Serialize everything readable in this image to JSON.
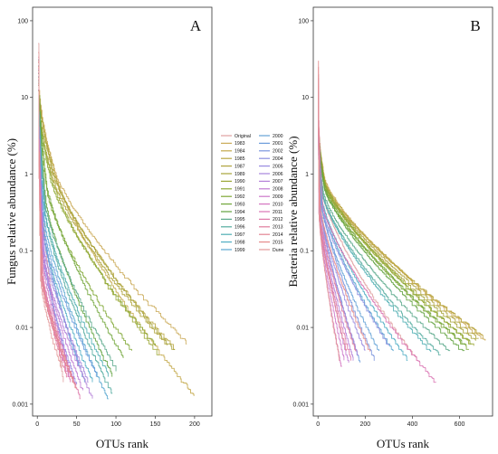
{
  "colors": {
    "Original": "#e0a0a0",
    "1983": "#cbab59",
    "1984": "#c3a84a",
    "1985": "#b9a641",
    "1987": "#afa33c",
    "1989": "#a6a338",
    "1990": "#9ba735",
    "1991": "#8da833",
    "1992": "#7fa734",
    "1993": "#70a538",
    "1994": "#61a23e",
    "1995": "#5aa88b",
    "1996": "#53ab9f",
    "1997": "#4eaeb3",
    "1998": "#50aec4",
    "1999": "#5aa7d0",
    "2000": "#64a2d6",
    "2001": "#6b9cdb",
    "2002": "#7a95de",
    "2004": "#8a8fe0",
    "2005": "#9889e0",
    "2006": "#a685dd",
    "2007": "#b47fd8",
    "2008": "#c07ad2",
    "2009": "#cb77ca",
    "2010": "#d474c0",
    "2011": "#da75b4",
    "2012": "#de78a8",
    "2013": "#e07c9c",
    "2014": "#e38392",
    "2015": "#e58a8a",
    "Dune": "#e39a9a"
  },
  "legend": {
    "col1": [
      "Original",
      "1983",
      "1984",
      "1985",
      "1987",
      "1989",
      "1990",
      "1991",
      "1992",
      "1993",
      "1994",
      "1995",
      "1996",
      "1997",
      "1998",
      "1999"
    ],
    "col2": [
      "2000",
      "2001",
      "2002",
      "2004",
      "2005",
      "2006",
      "2007",
      "2008",
      "2009",
      "2010",
      "2011",
      "2012",
      "2013",
      "2014",
      "2015",
      "Dune"
    ]
  },
  "chart_data": [
    {
      "type": "line",
      "panel": "A",
      "ylabel": "Fungus relative abundance (%)",
      "xlabel": "OTUs rank",
      "y_scale": "log",
      "ylim": [
        0.0007,
        150
      ],
      "xlim": [
        -6,
        222
      ],
      "y_ticks": [
        100,
        10,
        1,
        0.1,
        0.01,
        0.001
      ],
      "y_tick_labels": [
        "100",
        "10",
        "1",
        "0.1",
        "0.01",
        "0.001"
      ],
      "x_ticks": [
        0,
        50,
        100,
        150,
        200
      ],
      "x_tick_labels": [
        "0",
        "50",
        "100",
        "150",
        "200"
      ],
      "grid": false,
      "legend_position": "right",
      "series": [
        {
          "name": "Original",
          "n": 33,
          "start": 50,
          "knee": 1.2,
          "kneeFrac": 0.06,
          "end": 0.002
        },
        {
          "name": "1983",
          "n": 190,
          "start": 22,
          "knee": 1.4,
          "kneeFrac": 0.1,
          "end": 0.0065
        },
        {
          "name": "1984",
          "n": 200,
          "start": 15,
          "knee": 1.3,
          "kneeFrac": 0.1,
          "end": 0.0013
        },
        {
          "name": "1985",
          "n": 175,
          "start": 20,
          "knee": 1.2,
          "kneeFrac": 0.1,
          "end": 0.0055
        },
        {
          "name": "1987",
          "n": 165,
          "start": 12,
          "knee": 1.1,
          "kneeFrac": 0.1,
          "end": 0.006
        },
        {
          "name": "1989",
          "n": 175,
          "start": 18,
          "knee": 1.3,
          "kneeFrac": 0.1,
          "end": 0.005
        },
        {
          "name": "1990",
          "n": 155,
          "start": 14,
          "knee": 1.1,
          "kneeFrac": 0.1,
          "end": 0.0045
        },
        {
          "name": "1991",
          "n": 150,
          "start": 16,
          "knee": 1.0,
          "kneeFrac": 0.1,
          "end": 0.006
        },
        {
          "name": "1992",
          "n": 120,
          "start": 25,
          "knee": 0.6,
          "kneeFrac": 0.1,
          "end": 0.005
        },
        {
          "name": "1993",
          "n": 110,
          "start": 30,
          "knee": 0.8,
          "kneeFrac": 0.1,
          "end": 0.004
        },
        {
          "name": "1994",
          "n": 95,
          "start": 28,
          "knee": 0.5,
          "kneeFrac": 0.1,
          "end": 0.0025
        },
        {
          "name": "1995",
          "n": 100,
          "start": 20,
          "knee": 0.4,
          "kneeFrac": 0.1,
          "end": 0.003
        },
        {
          "name": "1996",
          "n": 95,
          "start": 18,
          "knee": 0.3,
          "kneeFrac": 0.1,
          "end": 0.0014
        },
        {
          "name": "1997",
          "n": 90,
          "start": 22,
          "knee": 0.35,
          "kneeFrac": 0.1,
          "end": 0.0025
        },
        {
          "name": "1998",
          "n": 70,
          "start": 15,
          "knee": 0.2,
          "kneeFrac": 0.1,
          "end": 0.002
        },
        {
          "name": "1999",
          "n": 90,
          "start": 12,
          "knee": 0.25,
          "kneeFrac": 0.1,
          "end": 0.0012
        },
        {
          "name": "2000",
          "n": 60,
          "start": 20,
          "knee": 0.2,
          "kneeFrac": 0.12,
          "end": 0.002
        },
        {
          "name": "2001",
          "n": 75,
          "start": 16,
          "knee": 0.18,
          "kneeFrac": 0.12,
          "end": 0.0025
        },
        {
          "name": "2002",
          "n": 55,
          "start": 25,
          "knee": 0.2,
          "kneeFrac": 0.12,
          "end": 0.003
        },
        {
          "name": "2004",
          "n": 45,
          "start": 30,
          "knee": 0.15,
          "kneeFrac": 0.12,
          "end": 0.002
        },
        {
          "name": "2005",
          "n": 50,
          "start": 18,
          "knee": 0.1,
          "kneeFrac": 0.12,
          "end": 0.0018
        },
        {
          "name": "2006",
          "n": 65,
          "start": 14,
          "knee": 0.12,
          "kneeFrac": 0.12,
          "end": 0.002
        },
        {
          "name": "2007",
          "n": 70,
          "start": 12,
          "knee": 0.09,
          "kneeFrac": 0.12,
          "end": 0.0012
        },
        {
          "name": "2008",
          "n": 58,
          "start": 22,
          "knee": 0.1,
          "kneeFrac": 0.12,
          "end": 0.0015
        },
        {
          "name": "2009",
          "n": 48,
          "start": 20,
          "knee": 0.08,
          "kneeFrac": 0.12,
          "end": 0.0018
        },
        {
          "name": "2010",
          "n": 40,
          "start": 28,
          "knee": 0.06,
          "kneeFrac": 0.12,
          "end": 0.0025
        },
        {
          "name": "2011",
          "n": 42,
          "start": 25,
          "knee": 0.05,
          "kneeFrac": 0.12,
          "end": 0.002
        },
        {
          "name": "2012",
          "n": 55,
          "start": 18,
          "knee": 0.05,
          "kneeFrac": 0.12,
          "end": 0.0012
        },
        {
          "name": "2013",
          "n": 38,
          "start": 35,
          "knee": 0.05,
          "kneeFrac": 0.12,
          "end": 0.0022
        },
        {
          "name": "2014",
          "n": 45,
          "start": 30,
          "knee": 0.04,
          "kneeFrac": 0.12,
          "end": 0.002
        },
        {
          "name": "2015",
          "n": 50,
          "start": 26,
          "knee": 0.045,
          "kneeFrac": 0.12,
          "end": 0.0016
        },
        {
          "name": "Dune",
          "n": 30,
          "start": 40,
          "knee": 0.04,
          "kneeFrac": 0.12,
          "end": 0.003
        }
      ]
    },
    {
      "type": "line",
      "panel": "B",
      "ylabel": "Bacteria relative abundance (%)",
      "xlabel": "OTUs rank",
      "y_scale": "log",
      "ylim": [
        0.0007,
        150
      ],
      "xlim": [
        -20,
        740
      ],
      "y_ticks": [
        100,
        10,
        1,
        0.1,
        0.01,
        0.001
      ],
      "y_tick_labels": [
        "100",
        "10",
        "1",
        "0.1",
        "0.01",
        "0.001"
      ],
      "x_ticks": [
        0,
        200,
        400,
        600
      ],
      "x_tick_labels": [
        "0",
        "200",
        "400",
        "600"
      ],
      "grid": false,
      "series": [
        {
          "name": "Original",
          "n": 420,
          "start": 5,
          "knee": 0.6,
          "kneeFrac": 0.04,
          "end": 0.004
        },
        {
          "name": "1983",
          "n": 710,
          "start": 6,
          "knee": 0.9,
          "kneeFrac": 0.04,
          "end": 0.007
        },
        {
          "name": "1984",
          "n": 700,
          "start": 5,
          "knee": 0.8,
          "kneeFrac": 0.04,
          "end": 0.008
        },
        {
          "name": "1985",
          "n": 690,
          "start": 4.5,
          "knee": 0.85,
          "kneeFrac": 0.04,
          "end": 0.0085
        },
        {
          "name": "1987",
          "n": 680,
          "start": 5,
          "knee": 0.8,
          "kneeFrac": 0.04,
          "end": 0.0075
        },
        {
          "name": "1989",
          "n": 670,
          "start": 4,
          "knee": 0.75,
          "kneeFrac": 0.04,
          "end": 0.007
        },
        {
          "name": "1990",
          "n": 660,
          "start": 4.5,
          "knee": 0.8,
          "kneeFrac": 0.04,
          "end": 0.006
        },
        {
          "name": "1991",
          "n": 650,
          "start": 5,
          "knee": 0.85,
          "kneeFrac": 0.04,
          "end": 0.0065
        },
        {
          "name": "1992",
          "n": 640,
          "start": 4,
          "knee": 0.7,
          "kneeFrac": 0.04,
          "end": 0.0055
        },
        {
          "name": "1993",
          "n": 630,
          "start": 6,
          "knee": 0.75,
          "kneeFrac": 0.04,
          "end": 0.006
        },
        {
          "name": "1994",
          "n": 620,
          "start": 5,
          "knee": 0.7,
          "kneeFrac": 0.04,
          "end": 0.005
        },
        {
          "name": "1995",
          "n": 560,
          "start": 4,
          "knee": 0.6,
          "kneeFrac": 0.04,
          "end": 0.005
        },
        {
          "name": "1996",
          "n": 520,
          "start": 5,
          "knee": 0.55,
          "kneeFrac": 0.04,
          "end": 0.0045
        },
        {
          "name": "1997",
          "n": 480,
          "start": 4,
          "knee": 0.55,
          "kneeFrac": 0.04,
          "end": 0.005
        },
        {
          "name": "1998",
          "n": 380,
          "start": 5,
          "knee": 0.5,
          "kneeFrac": 0.04,
          "end": 0.004
        },
        {
          "name": "1999",
          "n": 320,
          "start": 4,
          "knee": 0.5,
          "kneeFrac": 0.04,
          "end": 0.005
        },
        {
          "name": "2000",
          "n": 260,
          "start": 6,
          "knee": 0.45,
          "kneeFrac": 0.04,
          "end": 0.005
        },
        {
          "name": "2001",
          "n": 180,
          "start": 5,
          "knee": 0.45,
          "kneeFrac": 0.04,
          "end": 0.0035
        },
        {
          "name": "2002",
          "n": 240,
          "start": 6,
          "knee": 0.5,
          "kneeFrac": 0.04,
          "end": 0.004
        },
        {
          "name": "2004",
          "n": 300,
          "start": 5,
          "knee": 0.45,
          "kneeFrac": 0.04,
          "end": 0.006
        },
        {
          "name": "2005",
          "n": 200,
          "start": 8,
          "knee": 0.4,
          "kneeFrac": 0.04,
          "end": 0.005
        },
        {
          "name": "2006",
          "n": 170,
          "start": 7,
          "knee": 0.4,
          "kneeFrac": 0.04,
          "end": 0.0045
        },
        {
          "name": "2007",
          "n": 150,
          "start": 9,
          "knee": 0.35,
          "kneeFrac": 0.04,
          "end": 0.004
        },
        {
          "name": "2008",
          "n": 130,
          "start": 10,
          "knee": 0.35,
          "kneeFrac": 0.04,
          "end": 0.0035
        },
        {
          "name": "2009",
          "n": 110,
          "start": 12,
          "knee": 0.3,
          "kneeFrac": 0.04,
          "end": 0.004
        },
        {
          "name": "2010",
          "n": 100,
          "start": 15,
          "knee": 0.3,
          "kneeFrac": 0.04,
          "end": 0.003
        },
        {
          "name": "2011",
          "n": 500,
          "start": 14,
          "knee": 0.4,
          "kneeFrac": 0.04,
          "end": 0.002
        },
        {
          "name": "2012",
          "n": 140,
          "start": 18,
          "knee": 0.3,
          "kneeFrac": 0.04,
          "end": 0.004
        },
        {
          "name": "2013",
          "n": 160,
          "start": 20,
          "knee": 0.35,
          "kneeFrac": 0.04,
          "end": 0.005
        },
        {
          "name": "2014",
          "n": 120,
          "start": 25,
          "knee": 0.3,
          "kneeFrac": 0.04,
          "end": 0.005
        },
        {
          "name": "2015",
          "n": 220,
          "start": 30,
          "knee": 0.4,
          "kneeFrac": 0.04,
          "end": 0.005
        },
        {
          "name": "Dune",
          "n": 90,
          "start": 20,
          "knee": 0.3,
          "kneeFrac": 0.04,
          "end": 0.004
        }
      ]
    }
  ]
}
